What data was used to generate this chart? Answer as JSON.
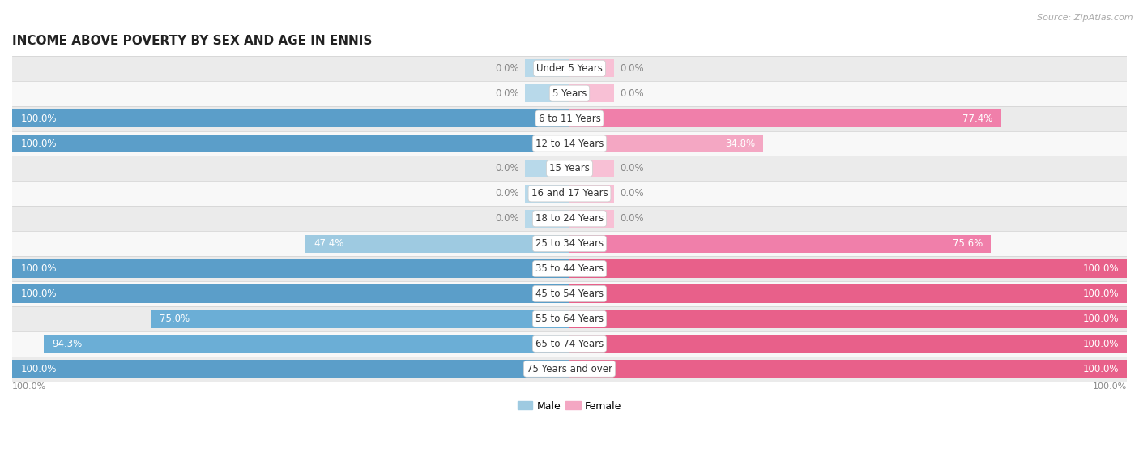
{
  "title": "INCOME ABOVE POVERTY BY SEX AND AGE IN ENNIS",
  "source": "Source: ZipAtlas.com",
  "categories": [
    "Under 5 Years",
    "5 Years",
    "6 to 11 Years",
    "12 to 14 Years",
    "15 Years",
    "16 and 17 Years",
    "18 to 24 Years",
    "25 to 34 Years",
    "35 to 44 Years",
    "45 to 54 Years",
    "55 to 64 Years",
    "65 to 74 Years",
    "75 Years and over"
  ],
  "male_values": [
    0.0,
    0.0,
    100.0,
    100.0,
    0.0,
    0.0,
    0.0,
    47.4,
    100.0,
    100.0,
    75.0,
    94.3,
    100.0
  ],
  "female_values": [
    0.0,
    0.0,
    77.4,
    34.8,
    0.0,
    0.0,
    0.0,
    75.6,
    100.0,
    100.0,
    100.0,
    100.0,
    100.0
  ],
  "male_color_light": "#9ecae1",
  "female_color_light": "#f4a7c3",
  "male_color_mid": "#6baed6",
  "female_color_mid": "#f07faa",
  "male_color_full": "#5b9ec9",
  "female_color_full": "#e8608a",
  "stub_male_color": "#b8d9ea",
  "stub_female_color": "#f8c0d5",
  "row_bg_dark": "#ebebeb",
  "row_bg_light": "#f8f8f8",
  "sep_color": "#d0d0d0",
  "label_inside_color": "#ffffff",
  "label_outside_color": "#888888",
  "title_fontsize": 11,
  "source_fontsize": 8,
  "label_fontsize": 8.5,
  "cat_fontsize": 8.5,
  "max_val": 100.0,
  "stub_size": 8.0
}
